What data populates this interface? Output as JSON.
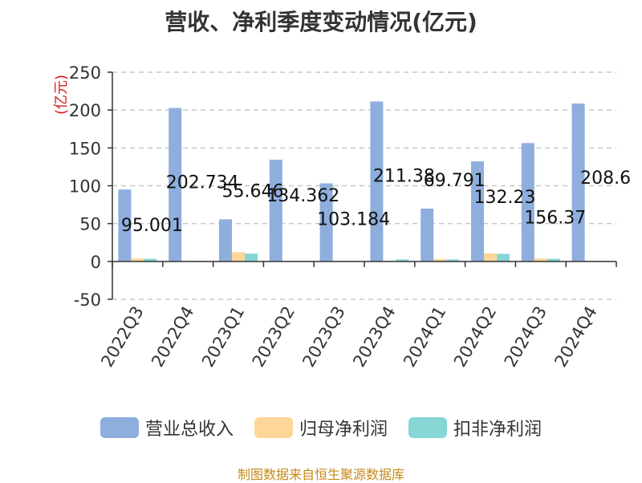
{
  "chart_data": {
    "type": "bar",
    "title": "营收、净利季度变动情况(亿元)",
    "ylabel": "(亿元)",
    "xlabel": "",
    "ylim": [
      -50,
      250
    ],
    "yticks": [
      -50,
      0,
      50,
      100,
      150,
      200,
      250
    ],
    "grid": true,
    "legend_position": "bottom",
    "categories": [
      "2022Q3",
      "2022Q4",
      "2023Q1",
      "2023Q2",
      "2023Q3",
      "2023Q4",
      "2024Q1",
      "2024Q2",
      "2024Q3",
      "2024Q4"
    ],
    "series": [
      {
        "name": "营业总收入",
        "color": "#8eaedd",
        "values": [
          95.001,
          202.734,
          55.646,
          134.362,
          103.184,
          211.38,
          69.791,
          132.23,
          156.37,
          208.6
        ],
        "labels": [
          "95.001",
          "202.734",
          "55.646",
          "134.362",
          "103.184",
          "211.38",
          "69.791",
          "132.23",
          "156.37",
          "208.6"
        ]
      },
      {
        "name": "归母净利润",
        "color": "#ffd699",
        "values": [
          3.9,
          1.0,
          12.2,
          0.6,
          0.8,
          0.9,
          3.3,
          10.5,
          3.8,
          0.7
        ]
      },
      {
        "name": "扣非净利润",
        "color": "#86d6d6",
        "values": [
          3.5,
          0.9,
          10.3,
          0.5,
          0.6,
          2.6,
          2.7,
          10.0,
          3.5,
          0.6
        ]
      }
    ]
  },
  "source": "制图数据来自恒生聚源数据库"
}
